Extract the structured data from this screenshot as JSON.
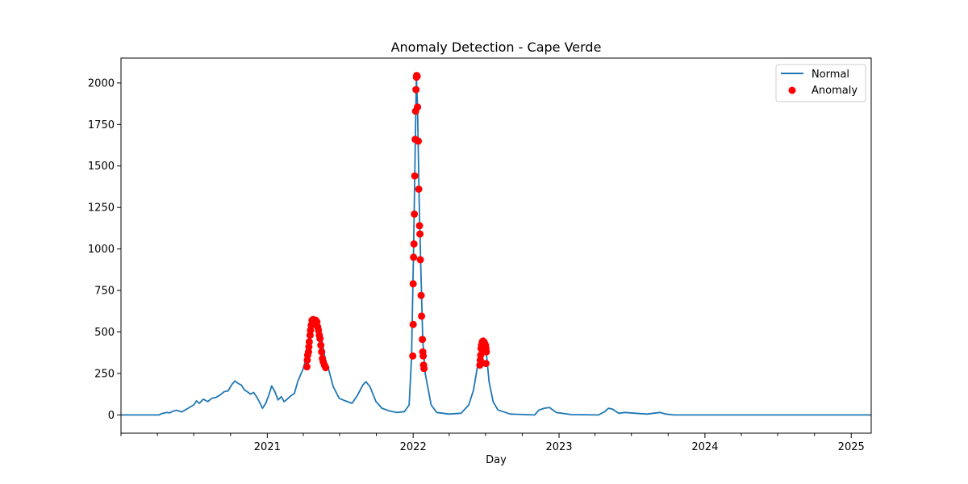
{
  "chart_data": {
    "type": "line",
    "title": "Anomaly Detection - Cape Verde",
    "xlabel": "Day",
    "ylabel": "",
    "x_axis_type": "date",
    "xlim": [
      "2020-01-01",
      "2025-02-20"
    ],
    "ylim": [
      -110,
      2150
    ],
    "x_ticks": [
      "2021",
      "2022",
      "2023",
      "2024",
      "2025"
    ],
    "y_ticks": [
      0,
      250,
      500,
      750,
      1000,
      1250,
      1500,
      1750,
      2000
    ],
    "grid": false,
    "legend_position": "top-right",
    "series": [
      {
        "name": "Normal",
        "kind": "line",
        "color": "#1f77b4",
        "points": [
          [
            "2020-01-01",
            0
          ],
          [
            "2020-04-05",
            0
          ],
          [
            "2020-04-12",
            8
          ],
          [
            "2020-04-25",
            15
          ],
          [
            "2020-05-01",
            12
          ],
          [
            "2020-05-10",
            22
          ],
          [
            "2020-05-20",
            28
          ],
          [
            "2020-06-01",
            18
          ],
          [
            "2020-06-10",
            30
          ],
          [
            "2020-06-20",
            45
          ],
          [
            "2020-07-01",
            60
          ],
          [
            "2020-07-08",
            85
          ],
          [
            "2020-07-15",
            70
          ],
          [
            "2020-07-25",
            95
          ],
          [
            "2020-08-05",
            80
          ],
          [
            "2020-08-15",
            100
          ],
          [
            "2020-08-25",
            105
          ],
          [
            "2020-09-05",
            120
          ],
          [
            "2020-09-15",
            140
          ],
          [
            "2020-09-25",
            145
          ],
          [
            "2020-10-05",
            185
          ],
          [
            "2020-10-12",
            205
          ],
          [
            "2020-10-20",
            190
          ],
          [
            "2020-10-28",
            180
          ],
          [
            "2020-11-05",
            150
          ],
          [
            "2020-11-12",
            140
          ],
          [
            "2020-11-20",
            125
          ],
          [
            "2020-11-28",
            135
          ],
          [
            "2020-12-05",
            110
          ],
          [
            "2020-12-12",
            80
          ],
          [
            "2020-12-20",
            40
          ],
          [
            "2020-12-28",
            70
          ],
          [
            "2021-01-05",
            120
          ],
          [
            "2021-01-12",
            175
          ],
          [
            "2021-01-20",
            140
          ],
          [
            "2021-01-28",
            90
          ],
          [
            "2021-02-05",
            110
          ],
          [
            "2021-02-12",
            80
          ],
          [
            "2021-02-20",
            95
          ],
          [
            "2021-03-01",
            115
          ],
          [
            "2021-03-10",
            130
          ],
          [
            "2021-03-18",
            200
          ],
          [
            "2021-03-25",
            240
          ],
          [
            "2021-04-01",
            280
          ],
          [
            "2021-04-08",
            340
          ],
          [
            "2021-04-15",
            420
          ],
          [
            "2021-04-22",
            500
          ],
          [
            "2021-04-29",
            560
          ],
          [
            "2021-05-06",
            545
          ],
          [
            "2021-05-13",
            520
          ],
          [
            "2021-05-20",
            420
          ],
          [
            "2021-05-27",
            320
          ],
          [
            "2021-06-03",
            280
          ],
          [
            "2021-06-15",
            170
          ],
          [
            "2021-06-30",
            100
          ],
          [
            "2021-07-15",
            85
          ],
          [
            "2021-08-01",
            70
          ],
          [
            "2021-08-15",
            120
          ],
          [
            "2021-08-28",
            180
          ],
          [
            "2021-09-05",
            200
          ],
          [
            "2021-09-15",
            170
          ],
          [
            "2021-09-30",
            80
          ],
          [
            "2021-10-15",
            40
          ],
          [
            "2021-11-01",
            25
          ],
          [
            "2021-11-20",
            15
          ],
          [
            "2021-12-10",
            20
          ],
          [
            "2021-12-22",
            60
          ],
          [
            "2021-12-28",
            350
          ],
          [
            "2022-01-02",
            1000
          ],
          [
            "2022-01-06",
            1600
          ],
          [
            "2022-01-09",
            2040
          ],
          [
            "2022-01-12",
            1850
          ],
          [
            "2022-01-16",
            1300
          ],
          [
            "2022-01-20",
            900
          ],
          [
            "2022-01-25",
            450
          ],
          [
            "2022-01-31",
            250
          ],
          [
            "2022-02-15",
            60
          ],
          [
            "2022-03-01",
            15
          ],
          [
            "2022-04-01",
            5
          ],
          [
            "2022-05-01",
            10
          ],
          [
            "2022-05-20",
            60
          ],
          [
            "2022-06-01",
            150
          ],
          [
            "2022-06-10",
            280
          ],
          [
            "2022-06-20",
            420
          ],
          [
            "2022-06-27",
            440
          ],
          [
            "2022-07-02",
            400
          ],
          [
            "2022-07-10",
            200
          ],
          [
            "2022-07-20",
            80
          ],
          [
            "2022-08-01",
            30
          ],
          [
            "2022-09-01",
            5
          ],
          [
            "2022-11-01",
            0
          ],
          [
            "2022-11-12",
            30
          ],
          [
            "2022-11-25",
            40
          ],
          [
            "2022-12-08",
            45
          ],
          [
            "2022-12-25",
            15
          ],
          [
            "2023-02-01",
            2
          ],
          [
            "2023-04-10",
            0
          ],
          [
            "2023-04-25",
            20
          ],
          [
            "2023-05-05",
            40
          ],
          [
            "2023-05-15",
            35
          ],
          [
            "2023-05-30",
            10
          ],
          [
            "2023-06-15",
            15
          ],
          [
            "2023-07-10",
            10
          ],
          [
            "2023-08-10",
            5
          ],
          [
            "2023-09-10",
            15
          ],
          [
            "2023-09-25",
            5
          ],
          [
            "2023-10-15",
            0
          ],
          [
            "2025-02-20",
            0
          ]
        ]
      },
      {
        "name": "Anomaly",
        "kind": "scatter",
        "color": "#ff0000",
        "points": [
          [
            "2021-04-10",
            290
          ],
          [
            "2021-04-11",
            330
          ],
          [
            "2021-04-12",
            360
          ],
          [
            "2021-04-14",
            380
          ],
          [
            "2021-04-15",
            410
          ],
          [
            "2021-04-16",
            440
          ],
          [
            "2021-04-18",
            480
          ],
          [
            "2021-04-19",
            510
          ],
          [
            "2021-04-21",
            540
          ],
          [
            "2021-04-23",
            570
          ],
          [
            "2021-04-26",
            575
          ],
          [
            "2021-04-29",
            560
          ],
          [
            "2021-05-02",
            570
          ],
          [
            "2021-05-05",
            560
          ],
          [
            "2021-05-07",
            530
          ],
          [
            "2021-05-09",
            510
          ],
          [
            "2021-05-11",
            480
          ],
          [
            "2021-05-13",
            460
          ],
          [
            "2021-05-15",
            420
          ],
          [
            "2021-05-17",
            380
          ],
          [
            "2021-05-19",
            340
          ],
          [
            "2021-05-21",
            320
          ],
          [
            "2021-05-24",
            300
          ],
          [
            "2021-05-27",
            285
          ],
          [
            "2021-12-31",
            355
          ],
          [
            "2022-01-01",
            545
          ],
          [
            "2022-01-01",
            790
          ],
          [
            "2022-01-02",
            950
          ],
          [
            "2022-01-03",
            1030
          ],
          [
            "2022-01-04",
            1210
          ],
          [
            "2022-01-05",
            1440
          ],
          [
            "2022-01-06",
            1660
          ],
          [
            "2022-01-07",
            1830
          ],
          [
            "2022-01-08",
            1960
          ],
          [
            "2022-01-09",
            2035
          ],
          [
            "2022-01-10",
            2045
          ],
          [
            "2022-01-11",
            2040
          ],
          [
            "2022-01-12",
            1855
          ],
          [
            "2022-01-14",
            1650
          ],
          [
            "2022-01-15",
            1360
          ],
          [
            "2022-01-17",
            1140
          ],
          [
            "2022-01-18",
            1090
          ],
          [
            "2022-01-19",
            935
          ],
          [
            "2022-01-21",
            720
          ],
          [
            "2022-01-22",
            595
          ],
          [
            "2022-01-24",
            455
          ],
          [
            "2022-01-25",
            380
          ],
          [
            "2022-01-26",
            355
          ],
          [
            "2022-01-27",
            300
          ],
          [
            "2022-01-28",
            280
          ],
          [
            "2022-06-17",
            300
          ],
          [
            "2022-06-18",
            330
          ],
          [
            "2022-06-19",
            360
          ],
          [
            "2022-06-20",
            400
          ],
          [
            "2022-06-21",
            420
          ],
          [
            "2022-06-23",
            440
          ],
          [
            "2022-06-25",
            445
          ],
          [
            "2022-06-27",
            440
          ],
          [
            "2022-06-29",
            430
          ],
          [
            "2022-07-01",
            420
          ],
          [
            "2022-07-02",
            400
          ],
          [
            "2022-07-03",
            380
          ],
          [
            "2022-07-02",
            310
          ]
        ]
      }
    ]
  }
}
